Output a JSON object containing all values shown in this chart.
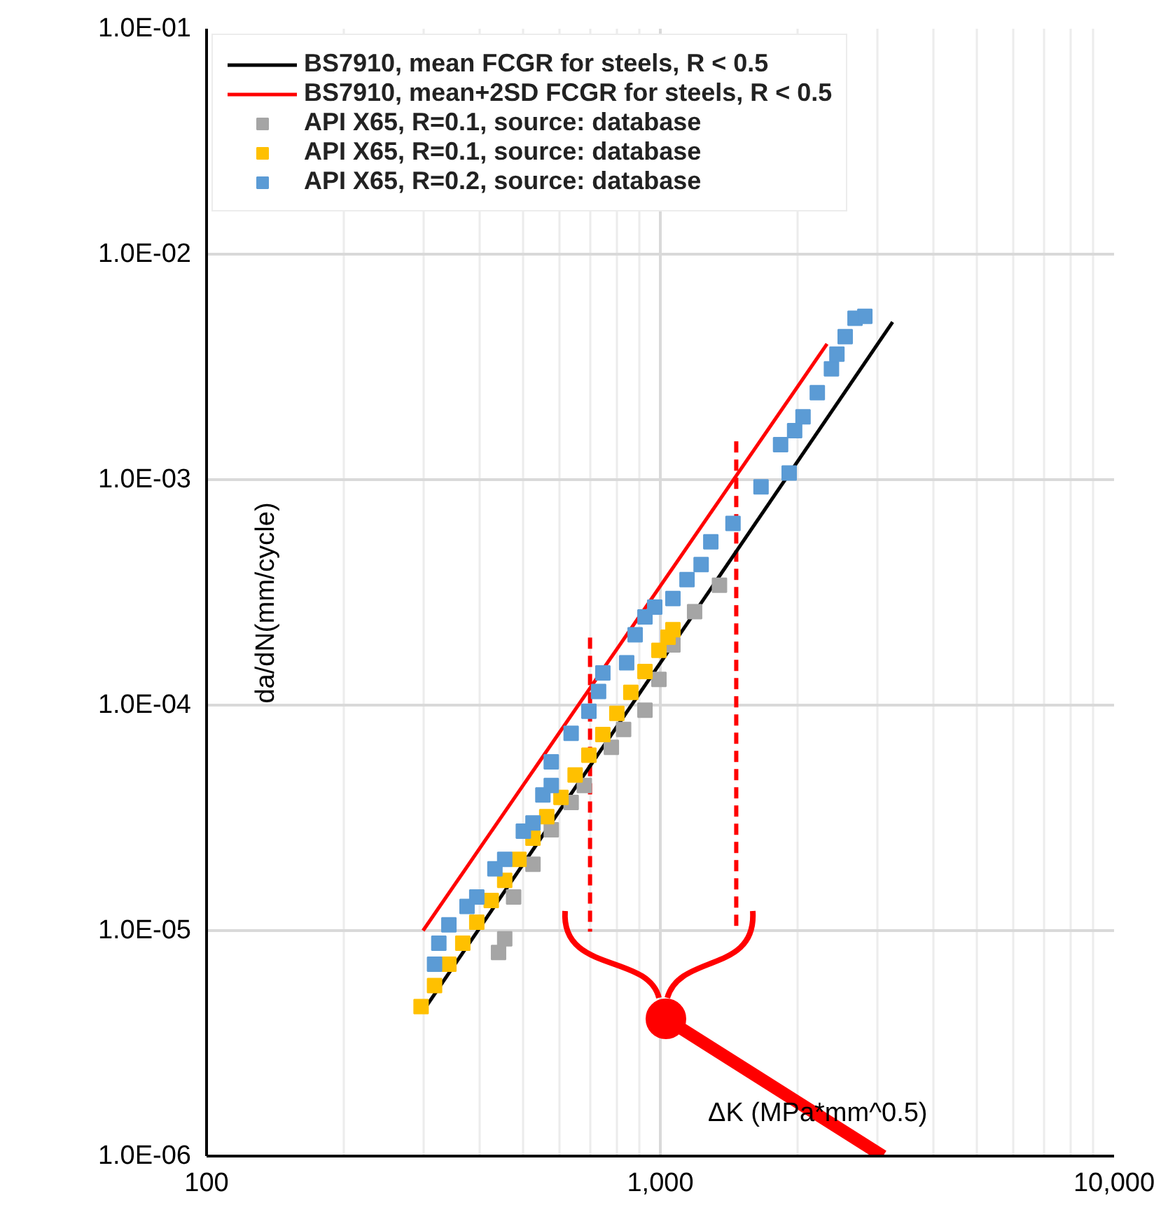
{
  "chart_data": {
    "type": "scatter",
    "xlabel": "ΔK (MPa*mm^0.5)",
    "ylabel": "da/dN(mm/cycle)",
    "log": "xy",
    "grid": true,
    "legend": "top left",
    "xlim": [
      100,
      10000
    ],
    "ylim": [
      1e-06,
      0.1
    ],
    "xticks": [
      100,
      {
        "value": 1000,
        "label": "1,000"
      },
      {
        "value": 10000,
        "label": "10,000"
      }
    ],
    "yticks": [
      {
        "value": 1e-06,
        "label": "1.0E-06"
      },
      {
        "value": 1e-05,
        "label": "1.0E-05"
      },
      {
        "value": 0.0001,
        "label": "1.0E-04"
      },
      {
        "value": 0.001,
        "label": "1.0E-03"
      },
      {
        "value": 0.01,
        "label": "1.0E-02"
      },
      {
        "value": 0.1,
        "label": "1.0E-01"
      }
    ],
    "series": [
      {
        "name": "BS7910, mean FCGR for steels, R < 0.5",
        "type": "line",
        "line_style": "solid",
        "color": "#000000",
        "x": [
          300,
          3250
        ],
        "values": [
          4.4e-06,
          0.005
        ]
      },
      {
        "name": "BS7910, mean+2SD FCGR for steels, R < 0.5",
        "type": "line",
        "line_style": "solid",
        "color": "#ff0000",
        "x": [
          300,
          2330
        ],
        "values": [
          1e-05,
          0.004
        ]
      },
      {
        "name": "API X65, R=0.1, source: database",
        "marker": "square",
        "color": "#a5a5a5",
        "x": [
          440,
          454,
          475,
          524,
          575,
          636,
          680,
          780,
          830,
          925,
          993,
          1066,
          1190,
          1350
        ],
        "values": [
          8e-06,
          9.2e-06,
          1.41e-05,
          1.97e-05,
          2.8e-05,
          3.7e-05,
          4.4e-05,
          6.5e-05,
          7.8e-05,
          9.5e-05,
          0.00013,
          0.000185,
          0.00026,
          0.00034
        ]
      },
      {
        "name": "API X65, R=0.1, source: database",
        "marker": "square",
        "color": "#ffc000",
        "x": [
          297,
          318,
          342,
          367,
          394,
          424,
          454,
          488,
          524,
          562,
          604,
          649,
          696,
          747,
          802,
          861,
          925,
          993,
          1040,
          1066
        ],
        "values": [
          4.6e-06,
          5.7e-06,
          7.1e-06,
          8.8e-06,
          1.09e-05,
          1.36e-05,
          1.67e-05,
          2.07e-05,
          2.57e-05,
          3.2e-05,
          3.9e-05,
          4.9e-05,
          6e-05,
          7.4e-05,
          9.2e-05,
          0.000114,
          0.000141,
          0.000175,
          0.0002,
          0.000216
        ]
      },
      {
        "name": "API X65, R=0.2, source: database",
        "marker": "square",
        "color": "#5b9bd5",
        "x": [
          318,
          325,
          342,
          375,
          394,
          432,
          454,
          499,
          524,
          551,
          575,
          575,
          636,
          696,
          731,
          747,
          843,
          880,
          925,
          972,
          1066,
          1145,
          1230,
          1292,
          1446,
          1667,
          1841,
          1923,
          1977,
          2063,
          2218,
          2383,
          2450,
          2555,
          2686,
          2823
        ],
        "values": [
          7.1e-06,
          8.8e-06,
          1.06e-05,
          1.28e-05,
          1.41e-05,
          1.88e-05,
          2.07e-05,
          2.76e-05,
          3e-05,
          4e-05,
          4.4e-05,
          5.6e-05,
          7.5e-05,
          9.4e-05,
          0.000115,
          0.000139,
          0.000154,
          0.000205,
          0.000246,
          0.000272,
          0.000297,
          0.00036,
          0.00042,
          0.00053,
          0.00064,
          0.00093,
          0.00143,
          0.00107,
          0.00165,
          0.0019,
          0.00243,
          0.0031,
          0.0036,
          0.00431,
          0.0052,
          0.0053
        ]
      }
    ],
    "ref_lines": [
      {
        "axis": "x",
        "value": 700,
        "color": "#ff0000",
        "line_style": "dashed"
      },
      {
        "axis": "x",
        "value": 1470,
        "color": "#ff0000",
        "line_style": "dashed"
      }
    ]
  }
}
